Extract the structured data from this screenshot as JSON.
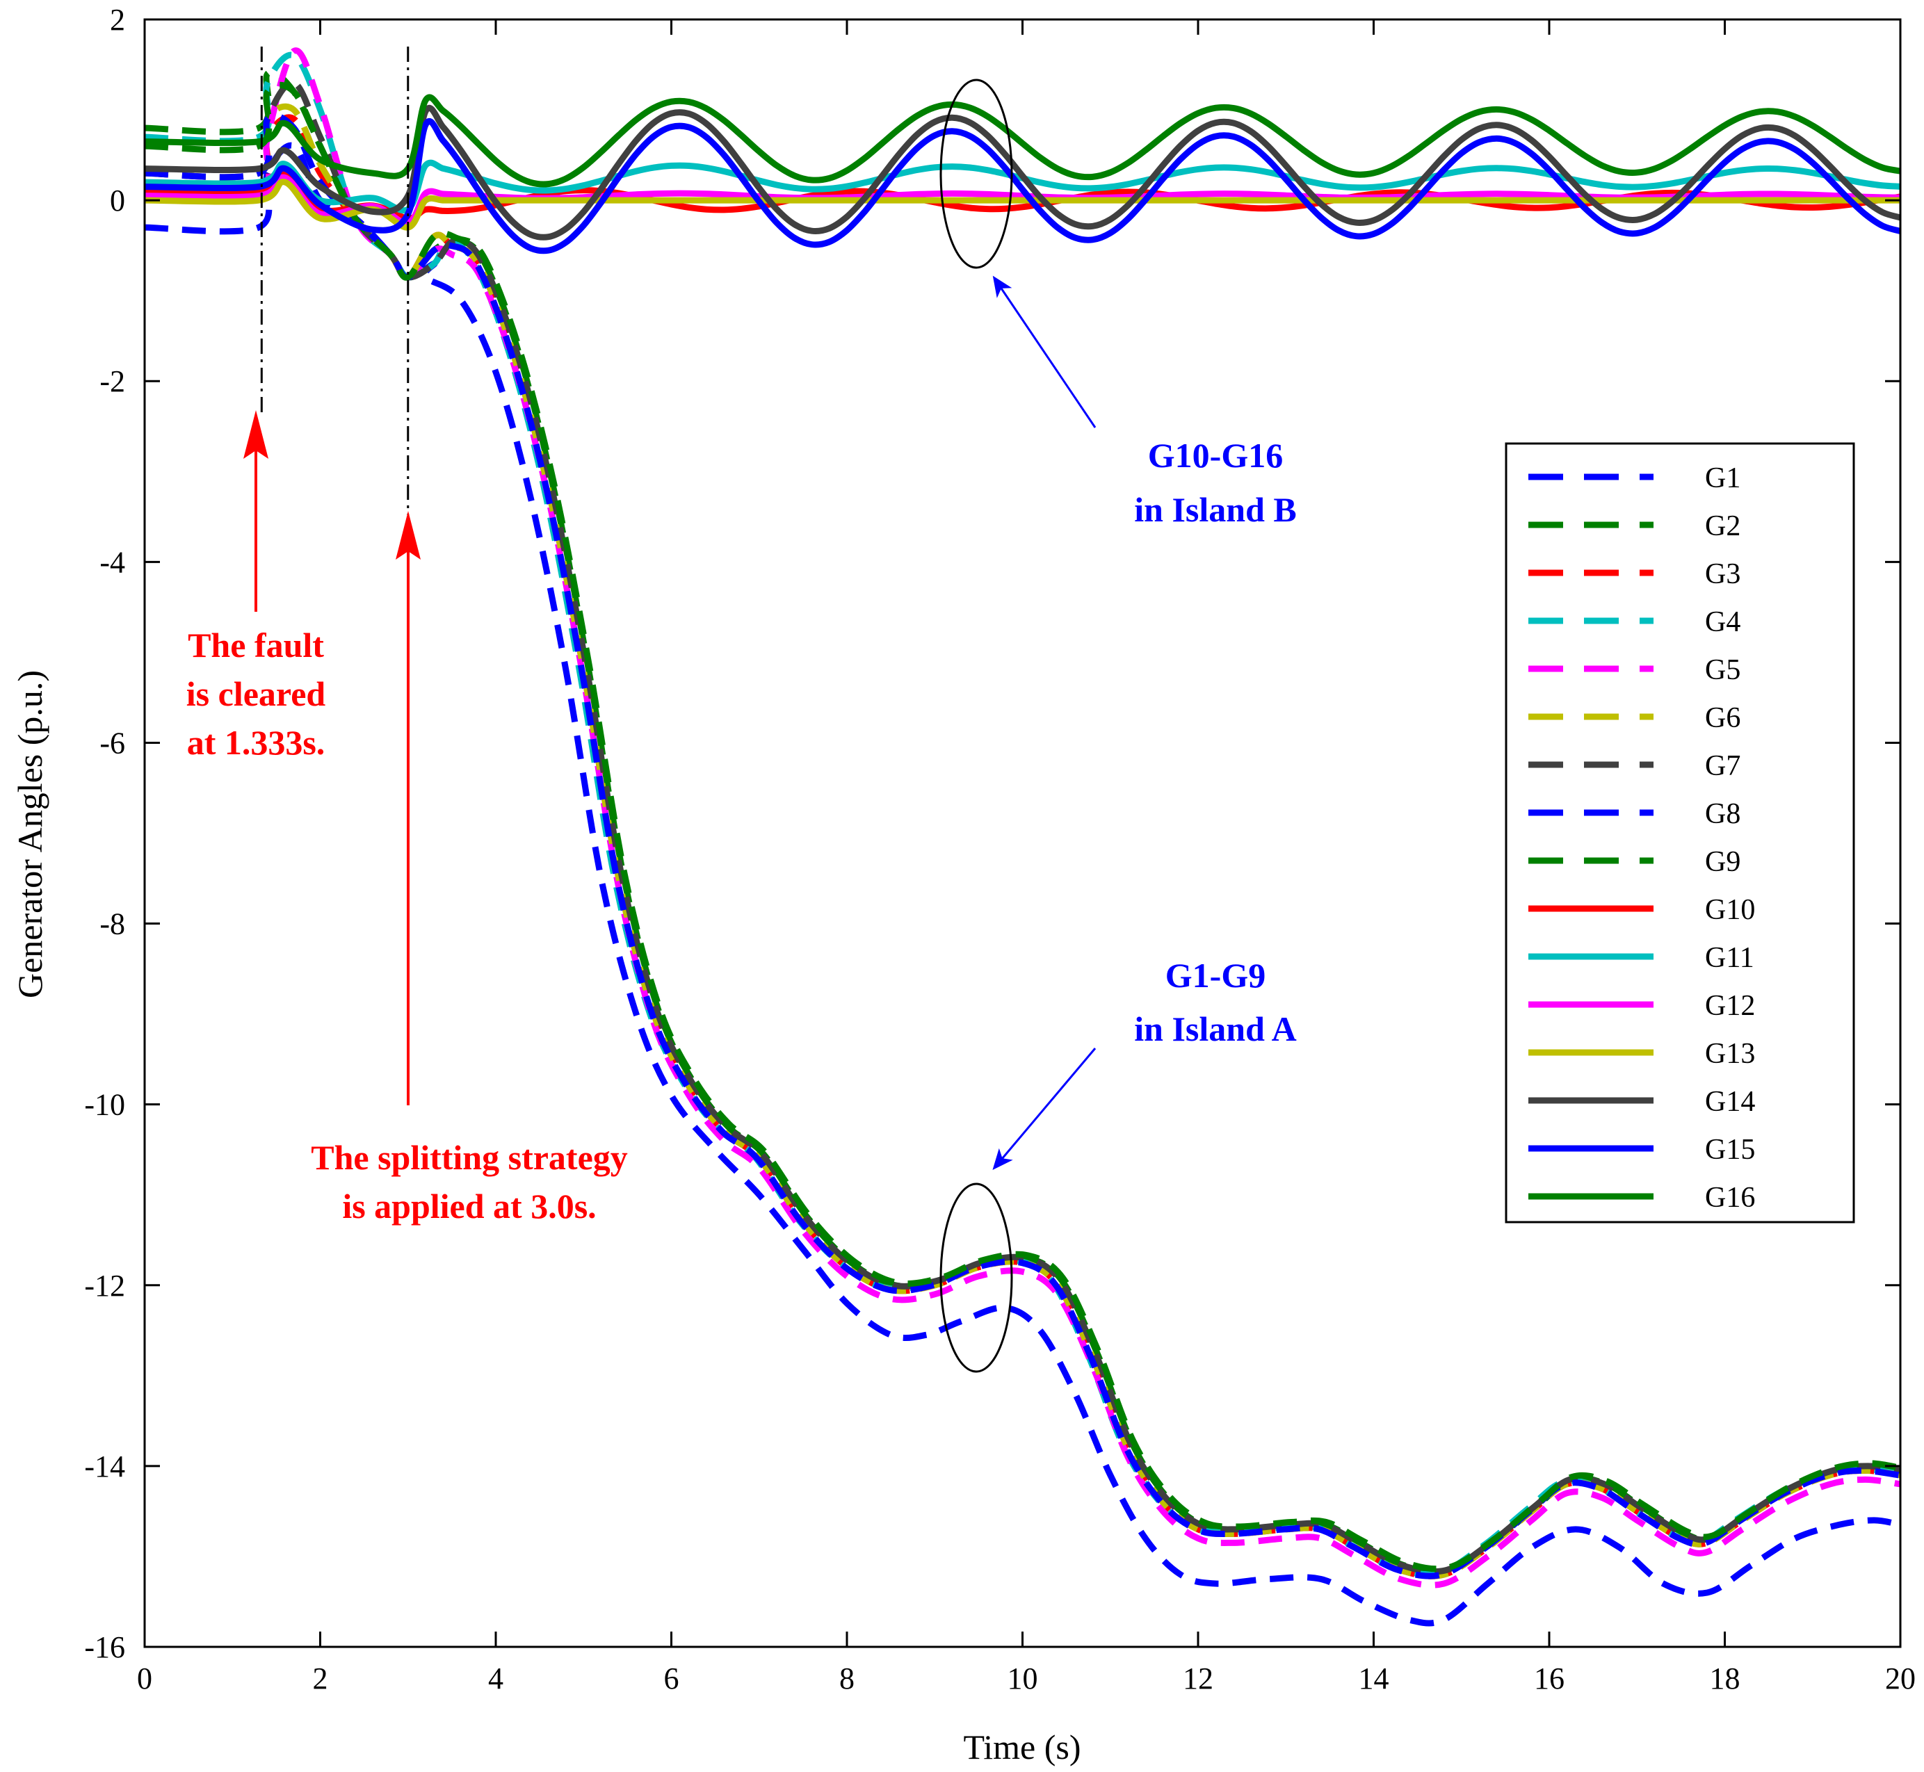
{
  "chart_data": {
    "type": "line",
    "title": "",
    "xlabel": "Time (s)",
    "ylabel": "Generator Angles (p.u.)",
    "xlim": [
      0,
      20
    ],
    "ylim": [
      -16,
      2
    ],
    "xticks": [
      0,
      2,
      4,
      6,
      8,
      10,
      12,
      14,
      16,
      18,
      20
    ],
    "yticks": [
      2,
      0,
      -2,
      -4,
      -6,
      -8,
      -10,
      -12,
      -14,
      -16
    ],
    "grid": false,
    "legend_position": "right",
    "series": [
      {
        "name": "G1",
        "color": "#0000ff",
        "style": "dashed",
        "island": "A",
        "initial": -0.3,
        "settled": [
          -15.3,
          -15.2,
          -15.75,
          -14.7,
          -15.4,
          -14.6
        ]
      },
      {
        "name": "G2",
        "color": "#008000",
        "style": "dashed",
        "island": "A",
        "initial": 0.8,
        "settled": [
          -14.7,
          -14.65,
          -15.2,
          -14.1,
          -14.8,
          -14.0
        ]
      },
      {
        "name": "G3",
        "color": "#ff0000",
        "style": "dashed",
        "island": "A",
        "initial": 0.1,
        "settled": [
          -14.75,
          -14.7,
          -15.25,
          -14.15,
          -14.85,
          -14.05
        ]
      },
      {
        "name": "G4",
        "color": "#00bfbf",
        "style": "dashed",
        "island": "A",
        "initial": 0.7,
        "settled": [
          -14.75,
          -14.7,
          -15.25,
          -14.2,
          -14.85,
          -14.05
        ]
      },
      {
        "name": "G5",
        "color": "#ff00ff",
        "style": "dashed",
        "island": "A",
        "initial": 0.1,
        "settled": [
          -14.85,
          -14.8,
          -15.3,
          -14.25,
          -15.0,
          -14.2
        ]
      },
      {
        "name": "G6",
        "color": "#bfbf00",
        "style": "dashed",
        "island": "A",
        "initial": 0.3,
        "settled": [
          -14.75,
          -14.7,
          -15.25,
          -14.15,
          -14.85,
          -14.05
        ]
      },
      {
        "name": "G7",
        "color": "#404040",
        "style": "dashed",
        "island": "A",
        "initial": 0.3,
        "settled": [
          -14.7,
          -14.65,
          -15.2,
          -14.1,
          -14.8,
          -14.0
        ]
      },
      {
        "name": "G8",
        "color": "#0000ff",
        "style": "dashed",
        "island": "A",
        "initial": 0.3,
        "settled": [
          -14.75,
          -14.7,
          -15.25,
          -14.15,
          -14.85,
          -14.05
        ]
      },
      {
        "name": "G9",
        "color": "#008000",
        "style": "dashed",
        "island": "A",
        "initial": 0.6,
        "settled": [
          -14.7,
          -14.65,
          -15.2,
          -14.1,
          -14.8,
          -14.0
        ]
      },
      {
        "name": "G10",
        "color": "#ff0000",
        "style": "solid",
        "island": "B",
        "initial": 0.1,
        "oscillation_center": 0.0
      },
      {
        "name": "G11",
        "color": "#00bfbf",
        "style": "solid",
        "island": "B",
        "initial": 0.2,
        "oscillation_center": 0.25
      },
      {
        "name": "G12",
        "color": "#ff00ff",
        "style": "solid",
        "island": "B",
        "initial": 0.05,
        "oscillation_center": 0.05
      },
      {
        "name": "G13",
        "color": "#bfbf00",
        "style": "solid",
        "island": "B",
        "initial": 0.0,
        "oscillation_center": 0.0
      },
      {
        "name": "G14",
        "color": "#404040",
        "style": "solid",
        "island": "B",
        "initial": 0.35,
        "oscillation_center": 0.3
      },
      {
        "name": "G15",
        "color": "#0000ff",
        "style": "solid",
        "island": "B",
        "initial": 0.15,
        "oscillation_center": 0.15
      },
      {
        "name": "G16",
        "color": "#008000",
        "style": "solid",
        "island": "B",
        "initial": 0.65,
        "oscillation_center": 0.65
      }
    ],
    "events": [
      {
        "time": 1.333,
        "label": "fault-cleared"
      },
      {
        "time": 3.0,
        "label": "splitting-applied"
      }
    ],
    "annotations": [
      {
        "id": "fault",
        "lines": [
          "The fault",
          "is cleared",
          "at 1.333s."
        ],
        "color": "#ff0000"
      },
      {
        "id": "split",
        "lines": [
          "The splitting strategy",
          "is applied at 3.0s."
        ],
        "color": "#ff0000"
      },
      {
        "id": "islandB",
        "lines": [
          "G10-G16",
          "in Island B"
        ],
        "color": "#0000ff"
      },
      {
        "id": "islandA",
        "lines": [
          "G1-G9",
          "in Island A"
        ],
        "color": "#0000ff"
      }
    ]
  }
}
